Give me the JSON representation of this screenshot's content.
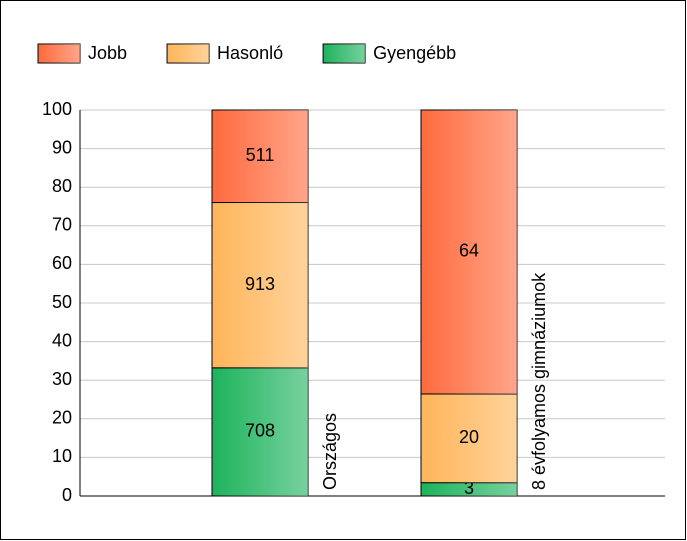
{
  "chart_data": {
    "type": "bar",
    "stacked": "percent",
    "categories": [
      "Országos",
      "8 évfolyamos gimnáziumok"
    ],
    "series": [
      {
        "name": "Gyengébb",
        "color": "#1db35c",
        "values": [
          708,
          3
        ]
      },
      {
        "name": "Hasonló",
        "color": "#ffb55a",
        "values": [
          913,
          20
        ]
      },
      {
        "name": "Jobb",
        "color": "#ff6a3d",
        "values": [
          511,
          64
        ]
      }
    ],
    "legend_order": [
      2,
      1,
      0
    ],
    "ylim": [
      0,
      100
    ],
    "yticks": [
      0,
      10,
      20,
      30,
      40,
      50,
      60,
      70,
      80,
      90,
      100
    ],
    "grid": true,
    "legend": "top"
  }
}
